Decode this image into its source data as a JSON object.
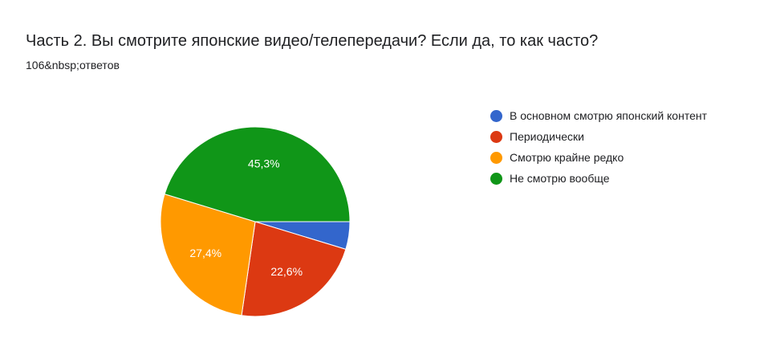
{
  "question": {
    "title": "Часть 2. Вы смотрите японские видео/телепередачи? Если да, то как часто?",
    "responses": "106&nbsp;ответов"
  },
  "chart_data": {
    "type": "pie",
    "categories": [
      "В основном смотрю японский контент",
      "Периодически",
      "Смотрю крайне редко",
      "Не смотрю вообще"
    ],
    "values": [
      4.7,
      22.6,
      27.4,
      45.3
    ],
    "data_labels": [
      "",
      "22,6%",
      "27,4%",
      "45,3%"
    ],
    "colors": [
      "#3366cc",
      "#dc3912",
      "#ff9900",
      "#109618"
    ],
    "start_angle_deg": 90,
    "direction": "clockwise",
    "legend_position": "right"
  }
}
